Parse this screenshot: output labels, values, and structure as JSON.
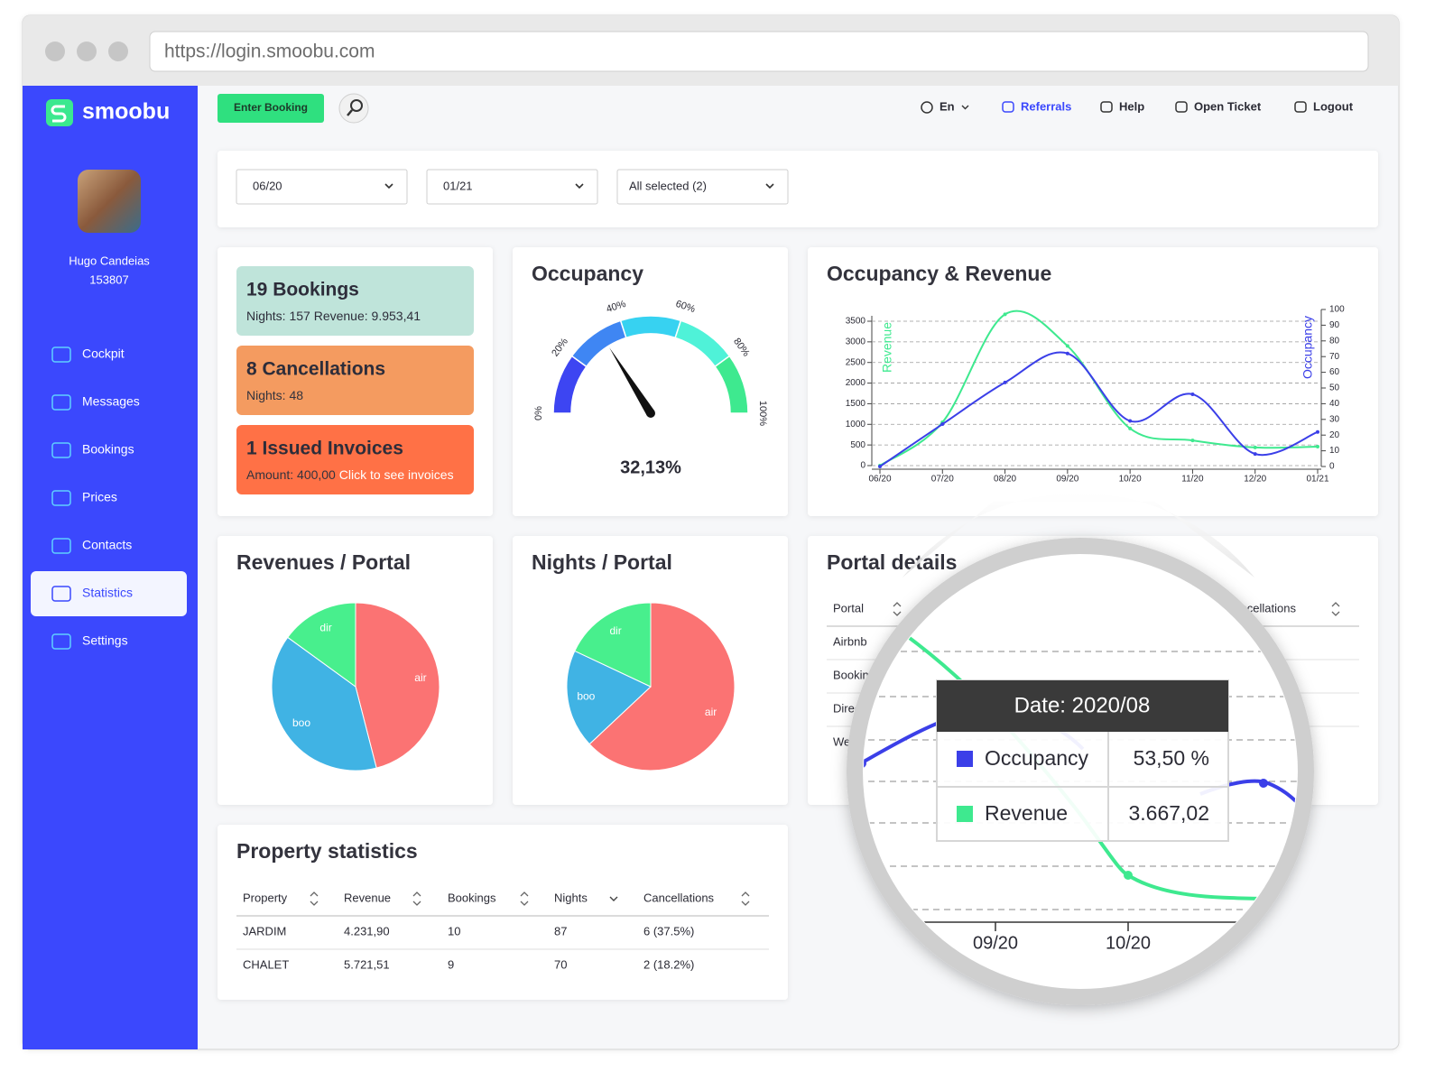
{
  "browser": {
    "url": "https://login.smoobu.com"
  },
  "sidebar": {
    "brand": "smoobu",
    "user_name": "Hugo Candeias",
    "user_id": "153807",
    "nav": [
      "Cockpit",
      "Messages",
      "Bookings",
      "Prices",
      "Contacts",
      "Statistics",
      "Settings"
    ],
    "active": 5
  },
  "topbar": {
    "enter_booking": "Enter Booking",
    "language": "En",
    "links": [
      "Referrals",
      "Help",
      "Open Ticket",
      "Logout"
    ]
  },
  "filters": [
    "06/20",
    "01/21",
    "All selected (2)"
  ],
  "summary": [
    {
      "title": "19 Bookings",
      "detail": "Nights: 157  Revenue: 9.953,41",
      "color": "#bfe4da"
    },
    {
      "title": "8 Cancellations",
      "detail": "Nights: 48",
      "color": "#f49b60"
    },
    {
      "title": "1 Issued Invoices",
      "detail": "Amount: 400,00",
      "link": "Click to see invoices",
      "color": "#ff7146"
    }
  ],
  "chart_data": [
    {
      "type": "gauge",
      "title": "Occupancy",
      "ylim": [
        0,
        100
      ],
      "ticks": [
        {
          "value": 0,
          "label": "0%"
        },
        {
          "value": 20,
          "label": "20%"
        },
        {
          "value": 40,
          "label": "40%"
        },
        {
          "value": 60,
          "label": "60%"
        },
        {
          "value": 80,
          "label": "80%"
        },
        {
          "value": 100,
          "label": "100%"
        }
      ],
      "colors": [
        "#3d45f2",
        "#3f86f3",
        "#37d2f1",
        "#4ff2d8",
        "#3ee98f"
      ],
      "value": 32.13,
      "value_label": "32,13%"
    },
    {
      "type": "line",
      "title": "Occupancy & Revenue",
      "categories": [
        "06/20",
        "07/20",
        "08/20",
        "09/20",
        "10/20",
        "11/20",
        "12/20",
        "01/21"
      ],
      "series": [
        {
          "name": "Revenue",
          "color": "#3ee98f",
          "values": [
            0,
            1050,
            3667.02,
            2900,
            900,
            610,
            440,
            460
          ]
        },
        {
          "name": "Occupancy",
          "color": "#3b3fe8",
          "axis": "y2",
          "values": [
            0,
            27,
            53.5,
            72,
            29,
            46,
            8,
            22
          ]
        }
      ],
      "ylim": [
        0,
        3500
      ],
      "yticks": [
        0,
        500,
        1000,
        1500,
        2000,
        2500,
        3000,
        3500
      ],
      "y2lim": [
        0,
        100
      ],
      "y2ticks": [
        0,
        10,
        20,
        30,
        40,
        50,
        60,
        70,
        80,
        90,
        100
      ],
      "grid": true
    },
    {
      "type": "pie",
      "title": "Revenues / Portal",
      "categories": [
        "air",
        "boo",
        "dir"
      ],
      "values": [
        46,
        39,
        15
      ],
      "colors": [
        "#fb7373",
        "#40b3e4",
        "#48ef8d"
      ]
    },
    {
      "type": "pie",
      "title": "Nights / Portal",
      "categories": [
        "air",
        "boo",
        "dir"
      ],
      "values": [
        63,
        19,
        18
      ],
      "colors": [
        "#fb7373",
        "#40b3e4",
        "#48ef8d"
      ]
    }
  ],
  "portal_details": {
    "title": "Portal details",
    "columns": [
      "Portal",
      "Cancellations"
    ],
    "rows": [
      "Airbnb",
      "Booking",
      "Direct",
      "Website"
    ]
  },
  "property_statistics": {
    "title": "Property statistics",
    "columns": [
      "Property",
      "Revenue",
      "Bookings",
      "Nights",
      "Cancellations"
    ],
    "rows": [
      [
        "JARDIM",
        "4.231,90",
        "10",
        "87",
        "6 (37.5%)"
      ],
      [
        "CHALET",
        "5.721,51",
        "9",
        "70",
        "2 (18.2%)"
      ]
    ]
  },
  "magnifier": {
    "date": "Date: 2020/08",
    "occupancy": "53,50 %",
    "revenue": "3.667,02"
  }
}
